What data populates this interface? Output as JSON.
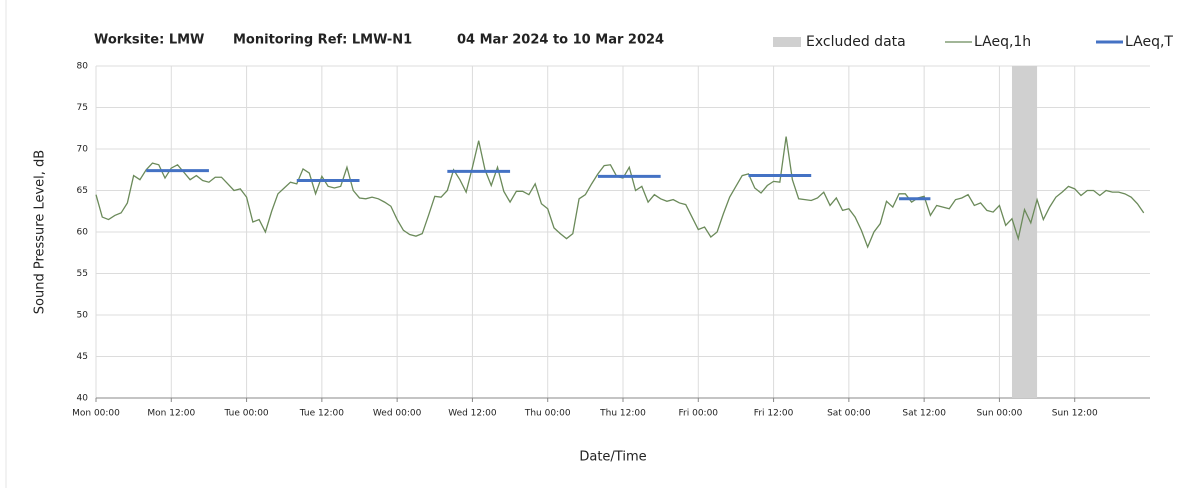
{
  "chart_data": {
    "type": "line",
    "title_parts": [
      "Worksite: LMW",
      "Monitoring Ref: LMW-N1",
      "04 Mar 2024 to 10 Mar 2024"
    ],
    "ylabel": "Sound Pressure Level, dB",
    "xlabel": "Date/Time",
    "xlim": [
      0,
      168
    ],
    "ylim": [
      40,
      80
    ],
    "yticks": [
      40,
      45,
      50,
      55,
      60,
      65,
      70,
      75,
      80
    ],
    "xticks": [
      {
        "value": 0,
        "label": "Mon 00:00"
      },
      {
        "value": 12,
        "label": "Mon 12:00"
      },
      {
        "value": 24,
        "label": "Tue 00:00"
      },
      {
        "value": 36,
        "label": "Tue 12:00"
      },
      {
        "value": 48,
        "label": "Wed 00:00"
      },
      {
        "value": 60,
        "label": "Wed 12:00"
      },
      {
        "value": 72,
        "label": "Thu 00:00"
      },
      {
        "value": 84,
        "label": "Thu 12:00"
      },
      {
        "value": 96,
        "label": "Fri 00:00"
      },
      {
        "value": 108,
        "label": "Fri 12:00"
      },
      {
        "value": 120,
        "label": "Sat 00:00"
      },
      {
        "value": 132,
        "label": "Sat 12:00"
      },
      {
        "value": 144,
        "label": "Sun 00:00"
      },
      {
        "value": 156,
        "label": "Sun 12:00"
      }
    ],
    "grid": true,
    "legend": "top-right",
    "excluded": {
      "name": "Excluded data",
      "color": "#d0d0d0",
      "start": 146,
      "end": 150
    },
    "x": [
      0,
      1,
      2,
      3,
      4,
      5,
      6,
      7,
      8,
      9,
      10,
      11,
      12,
      13,
      14,
      15,
      16,
      17,
      18,
      19,
      20,
      21,
      22,
      23,
      24,
      25,
      26,
      27,
      28,
      29,
      30,
      31,
      32,
      33,
      34,
      35,
      36,
      37,
      38,
      39,
      40,
      41,
      42,
      43,
      44,
      45,
      46,
      47,
      48,
      49,
      50,
      51,
      52,
      53,
      54,
      55,
      56,
      57,
      58,
      59,
      60,
      61,
      62,
      63,
      64,
      65,
      66,
      67,
      68,
      69,
      70,
      71,
      72,
      73,
      74,
      75,
      76,
      77,
      78,
      79,
      80,
      81,
      82,
      83,
      84,
      85,
      86,
      87,
      88,
      89,
      90,
      91,
      92,
      93,
      94,
      95,
      96,
      97,
      98,
      99,
      100,
      101,
      102,
      103,
      104,
      105,
      106,
      107,
      108,
      109,
      110,
      111,
      112,
      113,
      114,
      115,
      116,
      117,
      118,
      119,
      120,
      121,
      122,
      123,
      124,
      125,
      126,
      127,
      128,
      129,
      130,
      131,
      132,
      133,
      134,
      135,
      136,
      137,
      138,
      139,
      140,
      141,
      142,
      143,
      144,
      145,
      146,
      147,
      148,
      149,
      150,
      151,
      152,
      153,
      154,
      155,
      156,
      157,
      158,
      159,
      160,
      161,
      162,
      163,
      164,
      165,
      166,
      167
    ],
    "series": [
      {
        "name": "LAeq,1h",
        "color": "#6b8a5a",
        "values": [
          64.5,
          61.8,
          61.5,
          62,
          62.3,
          63.5,
          66.8,
          66.3,
          67.5,
          68.3,
          68.1,
          66.5,
          67.7,
          68.1,
          67.2,
          66.3,
          66.8,
          66.2,
          66,
          66.6,
          66.6,
          65.8,
          65,
          65.2,
          64.2,
          61.2,
          61.5,
          60,
          62.5,
          64.6,
          65.3,
          66,
          65.8,
          67.6,
          67.1,
          64.6,
          66.7,
          65.5,
          65.3,
          65.5,
          67.8,
          65,
          64.1,
          64,
          64.2,
          64,
          63.6,
          63.1,
          61.5,
          60.2,
          59.7,
          59.5,
          59.8,
          62,
          64.3,
          64.2,
          65,
          67.5,
          66.3,
          64.8,
          67.8,
          71,
          67.5,
          65.6,
          67.8,
          64.9,
          63.6,
          64.9,
          64.9,
          64.5,
          65.8,
          63.4,
          62.8,
          60.5,
          59.8,
          59.2,
          59.8,
          64,
          64.5,
          65.8,
          67,
          68,
          68.1,
          66.7,
          66.5,
          67.8,
          65,
          65.5,
          63.6,
          64.5,
          64,
          63.7,
          63.9,
          63.5,
          63.3,
          61.8,
          60.3,
          60.6,
          59.4,
          60,
          62.2,
          64.2,
          65.5,
          66.8,
          67,
          65.3,
          64.7,
          65.6,
          66.1,
          66,
          71.5,
          66.3,
          64,
          63.9,
          63.8,
          64.1,
          64.8,
          63.2,
          64.1,
          62.6,
          62.8,
          61.8,
          60.2,
          58.2,
          60,
          61,
          63.7,
          63,
          64.6,
          64.6,
          63.6,
          64.1,
          64.3,
          62,
          63.2,
          63,
          62.8,
          63.9,
          64.1,
          64.5,
          63.2,
          63.5,
          62.6,
          62.4,
          63.2,
          60.8,
          61.6,
          59.2,
          62.7,
          61.1,
          63.9,
          61.5,
          63,
          64.2,
          64.8,
          65.5,
          65.2,
          64.4,
          65,
          65,
          64.4,
          65,
          64.8,
          64.8,
          64.6,
          64.2,
          63.4,
          62.3
        ]
      },
      {
        "name": "LAeq,T",
        "color": "#4472c4",
        "segments": [
          {
            "start": 8,
            "end": 18,
            "value": 67.4
          },
          {
            "start": 32,
            "end": 42,
            "value": 66.2
          },
          {
            "start": 56,
            "end": 66,
            "value": 67.3
          },
          {
            "start": 80,
            "end": 90,
            "value": 66.7
          },
          {
            "start": 104,
            "end": 114,
            "value": 66.8
          },
          {
            "start": 128,
            "end": 133,
            "value": 64.0
          }
        ]
      }
    ]
  }
}
